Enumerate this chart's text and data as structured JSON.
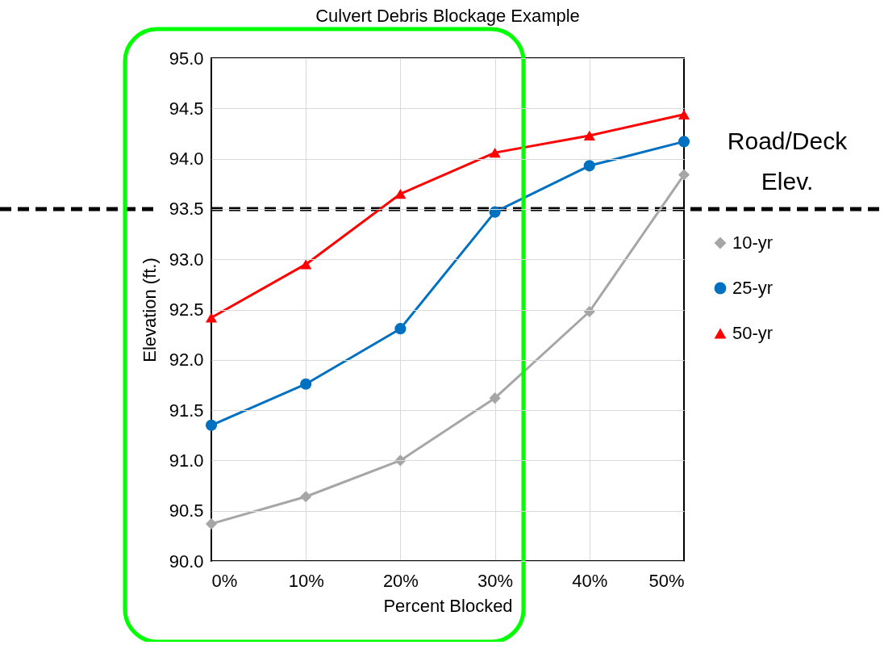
{
  "chart_data": {
    "type": "line",
    "title": "Culvert Debris Blockage Example",
    "xlabel": "Percent Blocked",
    "ylabel": "Elevation (ft.)",
    "x": [
      0,
      10,
      20,
      30,
      40,
      50
    ],
    "series": [
      {
        "name": "10-yr",
        "color": "#a6a6a6",
        "marker": "diamond",
        "values": [
          90.37,
          90.64,
          91.0,
          91.62,
          92.48,
          93.84
        ]
      },
      {
        "name": "25-yr",
        "color": "#0070c0",
        "marker": "circle",
        "values": [
          91.35,
          91.76,
          92.31,
          93.47,
          93.93,
          94.17
        ]
      },
      {
        "name": "50-yr",
        "color": "#ff0000",
        "marker": "triangle",
        "values": [
          92.42,
          92.95,
          93.65,
          94.06,
          94.23,
          94.44
        ]
      }
    ],
    "xlim": [
      0,
      50
    ],
    "xticks": [
      {
        "value": 0,
        "label": "0%"
      },
      {
        "value": 10,
        "label": "10%"
      },
      {
        "value": 20,
        "label": "20%"
      },
      {
        "value": 30,
        "label": "30%"
      },
      {
        "value": 40,
        "label": "40%"
      },
      {
        "value": 50,
        "label": "50%"
      }
    ],
    "ylim": [
      90,
      95
    ],
    "yticks": [
      {
        "value": 90,
        "label": "90.0"
      },
      {
        "value": 90.5,
        "label": "90.5"
      },
      {
        "value": 91,
        "label": "91.0"
      },
      {
        "value": 91.5,
        "label": "91.5"
      },
      {
        "value": 92,
        "label": "92.0"
      },
      {
        "value": 92.5,
        "label": "92.5"
      },
      {
        "value": 93,
        "label": "93.0"
      },
      {
        "value": 93.5,
        "label": "93.5"
      },
      {
        "value": 94,
        "label": "94.0"
      },
      {
        "value": 94.5,
        "label": "94.5"
      },
      {
        "value": 95,
        "label": "95.0"
      }
    ],
    "ref_lines": [
      {
        "axis": "y",
        "value": 93.5,
        "label": "Road/Deck Elev.",
        "color": "#000000",
        "line_style": "dashed"
      }
    ],
    "grid": true,
    "legend": "right",
    "line_style": "solid"
  }
}
